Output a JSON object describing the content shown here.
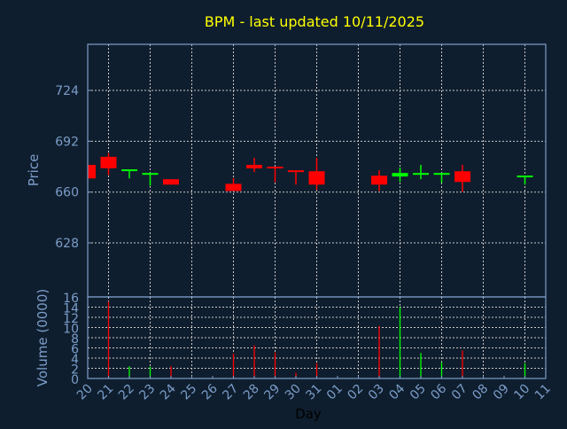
{
  "chart_data": [
    {
      "type": "candlestick",
      "title": "BPM - last updated 10/11/2025",
      "xlabel": "Day",
      "ylabel": "Price",
      "x_tick_labels": [
        "20",
        "21",
        "22",
        "23",
        "24",
        "25",
        "26",
        "27",
        "28",
        "29",
        "30",
        "31",
        "01",
        "02",
        "03",
        "04",
        "05",
        "06",
        "07",
        "08",
        "09",
        "10",
        "11"
      ],
      "y_ticks": [
        628,
        660,
        692,
        724
      ],
      "ylim": [
        594,
        753
      ],
      "grid": true,
      "candles": [
        {
          "day": "20",
          "open": 677.1,
          "high": 677.1,
          "low": 668.6,
          "close": 668.6
        },
        {
          "day": "21",
          "open": 682.2,
          "high": 684.6,
          "low": 670.7,
          "close": 675.0
        },
        {
          "day": "22",
          "open": 673.4,
          "high": 674.3,
          "low": 668.6,
          "close": 674.3
        },
        {
          "day": "23",
          "open": 670.9,
          "high": 672.0,
          "low": 664.0,
          "close": 672.0
        },
        {
          "day": "24",
          "open": 668.1,
          "high": 668.1,
          "low": 664.7,
          "close": 664.7
        },
        {
          "day": "27",
          "open": 665.2,
          "high": 668.8,
          "low": 660.7,
          "close": 660.7
        },
        {
          "day": "28",
          "open": 677.1,
          "high": 681.6,
          "low": 672.6,
          "close": 674.9
        },
        {
          "day": "29",
          "open": 676.0,
          "high": 676.0,
          "low": 666.2,
          "close": 674.9
        },
        {
          "day": "30",
          "open": 673.7,
          "high": 673.7,
          "low": 664.7,
          "close": 672.6
        },
        {
          "day": "31",
          "open": 673.1,
          "high": 681.6,
          "low": 661.3,
          "close": 664.7
        },
        {
          "day": "03",
          "open": 670.3,
          "high": 673.7,
          "low": 660.7,
          "close": 664.7
        },
        {
          "day": "04",
          "open": 669.8,
          "high": 675.4,
          "low": 666.4,
          "close": 672.0
        },
        {
          "day": "05",
          "open": 671.0,
          "high": 677.1,
          "low": 668.1,
          "close": 672.0
        },
        {
          "day": "06",
          "open": 671.0,
          "high": 672.0,
          "low": 665.8,
          "close": 672.0
        },
        {
          "day": "07",
          "open": 673.1,
          "high": 677.1,
          "low": 660.2,
          "close": 666.4
        },
        {
          "day": "10",
          "open": 669.3,
          "high": 670.4,
          "low": 664.7,
          "close": 670.4
        }
      ]
    },
    {
      "type": "bar",
      "ylabel": "Volume (0000)",
      "y_ticks": [
        0,
        2,
        4,
        6,
        8,
        10,
        12,
        14,
        16
      ],
      "ylim": [
        0,
        16
      ],
      "grid": true,
      "bars": [
        {
          "day": "21",
          "value": 15.1,
          "direction": "down"
        },
        {
          "day": "22",
          "value": 2.4,
          "direction": "up"
        },
        {
          "day": "23",
          "value": 2.3,
          "direction": "up"
        },
        {
          "day": "24",
          "value": 2.4,
          "direction": "down"
        },
        {
          "day": "27",
          "value": 4.9,
          "direction": "down"
        },
        {
          "day": "28",
          "value": 6.5,
          "direction": "down"
        },
        {
          "day": "29",
          "value": 5.1,
          "direction": "down"
        },
        {
          "day": "30",
          "value": 1.1,
          "direction": "down"
        },
        {
          "day": "31",
          "value": 3.0,
          "direction": "down"
        },
        {
          "day": "03",
          "value": 10.3,
          "direction": "down"
        },
        {
          "day": "04",
          "value": 14.0,
          "direction": "up"
        },
        {
          "day": "05",
          "value": 5.0,
          "direction": "up"
        },
        {
          "day": "06",
          "value": 3.2,
          "direction": "up"
        },
        {
          "day": "07",
          "value": 5.5,
          "direction": "down"
        },
        {
          "day": "10",
          "value": 3.0,
          "direction": "up"
        }
      ]
    }
  ],
  "colors": {
    "background": "#0f1e2e",
    "axis": "#7b9dc9",
    "title": "#ffff00",
    "up": "#00ff00",
    "down": "#ff0000",
    "grid": "#c8c8c8",
    "xlabel": "#000000"
  }
}
